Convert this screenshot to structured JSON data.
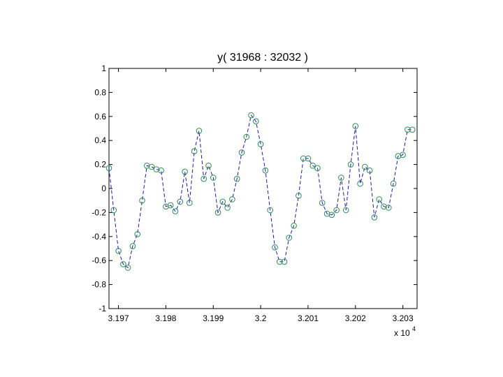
{
  "chart_data": {
    "type": "line",
    "title": "y( 31968 : 32032 )",
    "xlabel": "",
    "ylabel": "",
    "x_multiplier_label": "x 10",
    "x_multiplier_exponent": "4",
    "xlim": [
      31968,
      32033
    ],
    "ylim": [
      -1,
      1
    ],
    "x_ticks": [
      31970,
      31980,
      31990,
      32000,
      32010,
      32020,
      32030
    ],
    "x_tick_labels": [
      "3.197",
      "3.198",
      "3.199",
      "3.2",
      "3.201",
      "3.202",
      "3.203"
    ],
    "y_ticks": [
      1,
      0.8,
      0.6,
      0.4,
      0.2,
      0,
      -0.2,
      -0.4,
      -0.6,
      -0.8,
      -1
    ],
    "y_tick_labels": [
      "1",
      "0.8",
      "0.6",
      "0.4",
      "0.2",
      "0",
      "-0.2",
      "-0.4",
      "-0.6",
      "-0.8",
      "-1"
    ],
    "grid": false,
    "colors": {
      "line": "#1a1aa6",
      "marker": "#2e8b57",
      "axes": "#000000"
    },
    "line_style": "dashed",
    "marker": "circle",
    "x": [
      31968,
      31969,
      31970,
      31971,
      31972,
      31973,
      31974,
      31975,
      31976,
      31977,
      31978,
      31979,
      31980,
      31981,
      31982,
      31983,
      31984,
      31985,
      31986,
      31987,
      31988,
      31989,
      31990,
      31991,
      31992,
      31993,
      31994,
      31995,
      31996,
      31997,
      31998,
      31999,
      32000,
      32001,
      32002,
      32003,
      32004,
      32005,
      32006,
      32007,
      32008,
      32009,
      32010,
      32011,
      32012,
      32013,
      32014,
      32015,
      32016,
      32017,
      32018,
      32019,
      32020,
      32021,
      32022,
      32023,
      32024,
      32025,
      32026,
      32027,
      32028,
      32029,
      32030,
      32031,
      32032
    ],
    "y": [
      0.17,
      -0.18,
      -0.52,
      -0.63,
      -0.66,
      -0.48,
      -0.38,
      -0.1,
      0.19,
      0.18,
      0.16,
      0.15,
      -0.15,
      -0.14,
      -0.19,
      -0.11,
      0.14,
      -0.12,
      0.31,
      0.48,
      0.08,
      0.19,
      0.09,
      -0.2,
      -0.11,
      -0.16,
      -0.09,
      0.08,
      0.3,
      0.43,
      0.61,
      0.56,
      0.37,
      0.15,
      -0.18,
      -0.49,
      -0.61,
      -0.61,
      -0.41,
      -0.31,
      -0.06,
      0.25,
      0.25,
      0.19,
      0.17,
      -0.12,
      -0.21,
      -0.22,
      -0.18,
      0.09,
      -0.18,
      0.2,
      0.52,
      0.04,
      0.18,
      0.15,
      -0.24,
      -0.09,
      -0.15,
      -0.16,
      0.04,
      0.27,
      0.28,
      0.49,
      0.49
    ]
  }
}
